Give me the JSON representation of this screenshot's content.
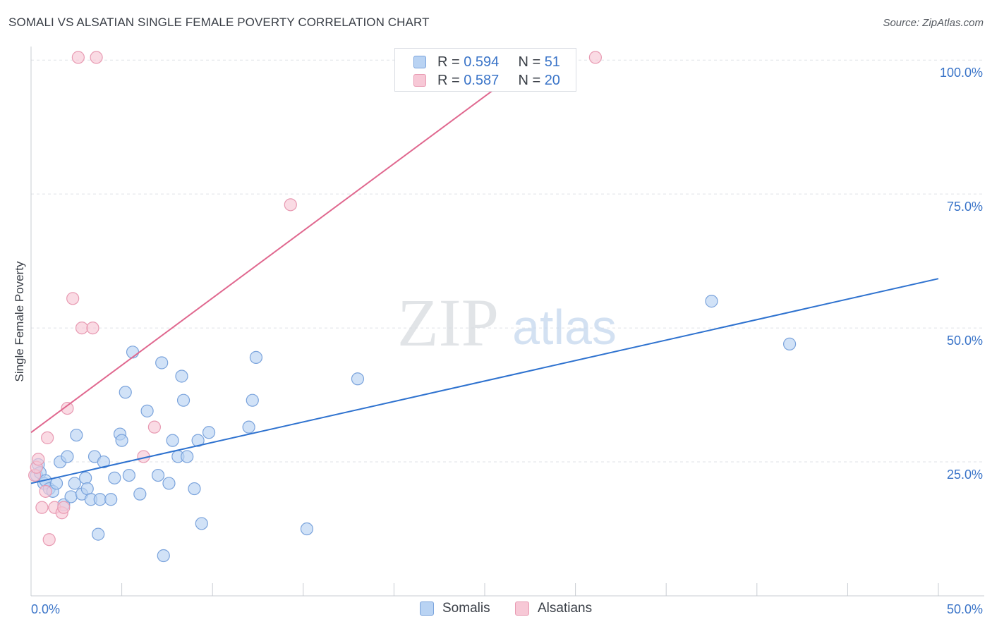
{
  "header": {
    "title": "SOMALI VS ALSATIAN SINGLE FEMALE POVERTY CORRELATION CHART",
    "source": "Source: ZipAtlas.com"
  },
  "watermark": {
    "zip": "ZIP",
    "atlas": "atlas"
  },
  "colors": {
    "somalis_fill": "#b9d3f3",
    "somalis_stroke": "#7aa3dc",
    "somalis_line": "#2e72cf",
    "alsatians_fill": "#f7c8d6",
    "alsatians_stroke": "#e89ab2",
    "alsatians_line": "#e0688f",
    "tick_text": "#3a74c8",
    "grid": "#dfe2e7"
  },
  "legend": {
    "somalis": {
      "r_label": "R = ",
      "r_value": "0.594",
      "n_label": "N = ",
      "n_value": "51"
    },
    "alsatians": {
      "r_label": "R = ",
      "r_value": "0.587",
      "n_label": "N = ",
      "n_value": "20"
    }
  },
  "bottom_legend": {
    "somalis": "Somalis",
    "alsatians": "Alsatians"
  },
  "chart_data": {
    "type": "scatter",
    "title": "SOMALI VS ALSATIAN SINGLE FEMALE POVERTY CORRELATION CHART",
    "xlabel": "",
    "ylabel": "Single Female Poverty",
    "xlim": [
      0,
      50
    ],
    "ylim": [
      0,
      102
    ],
    "x_tick_labels": [
      {
        "value": 0,
        "label": "0.0%"
      },
      {
        "value": 50,
        "label": "50.0%"
      }
    ],
    "y_tick_labels": [
      {
        "value": 25,
        "label": "25.0%"
      },
      {
        "value": 50,
        "label": "50.0%"
      },
      {
        "value": 75,
        "label": "75.0%"
      },
      {
        "value": 100,
        "label": "100.0%"
      }
    ],
    "series": [
      {
        "name": "Somalis",
        "r": 0.594,
        "n": 51,
        "trendline": {
          "x": [
            0,
            50
          ],
          "y": [
            21.0,
            59.2
          ]
        },
        "points": [
          [
            0.3,
            22.5
          ],
          [
            0.4,
            24.5
          ],
          [
            0.5,
            23.0
          ],
          [
            0.7,
            21.0
          ],
          [
            0.8,
            21.5
          ],
          [
            1.0,
            20.0
          ],
          [
            1.2,
            19.5
          ],
          [
            1.4,
            21.0
          ],
          [
            1.6,
            25.0
          ],
          [
            1.8,
            17.0
          ],
          [
            2.0,
            26.0
          ],
          [
            2.2,
            18.5
          ],
          [
            2.4,
            21.0
          ],
          [
            2.5,
            30.0
          ],
          [
            2.8,
            19.0
          ],
          [
            3.0,
            22.0
          ],
          [
            3.1,
            20.0
          ],
          [
            3.3,
            18.0
          ],
          [
            3.5,
            26.0
          ],
          [
            3.7,
            11.5
          ],
          [
            3.8,
            18.0
          ],
          [
            4.0,
            25.0
          ],
          [
            4.4,
            18.0
          ],
          [
            4.6,
            22.0
          ],
          [
            4.9,
            30.2
          ],
          [
            5.0,
            29.0
          ],
          [
            5.2,
            38.0
          ],
          [
            5.4,
            22.5
          ],
          [
            5.6,
            45.5
          ],
          [
            6.0,
            19.0
          ],
          [
            6.4,
            34.5
          ],
          [
            7.0,
            22.5
          ],
          [
            7.2,
            43.5
          ],
          [
            7.3,
            7.5
          ],
          [
            7.6,
            21.0
          ],
          [
            7.8,
            29.0
          ],
          [
            8.1,
            26.0
          ],
          [
            8.3,
            41.0
          ],
          [
            8.4,
            36.5
          ],
          [
            8.6,
            26.0
          ],
          [
            9.0,
            20.0
          ],
          [
            9.2,
            29.0
          ],
          [
            9.4,
            13.5
          ],
          [
            9.8,
            30.5
          ],
          [
            12.0,
            31.5
          ],
          [
            12.2,
            36.5
          ],
          [
            12.4,
            44.5
          ],
          [
            15.2,
            12.5
          ],
          [
            18.0,
            40.5
          ],
          [
            37.5,
            55.0
          ],
          [
            41.8,
            47.0
          ]
        ]
      },
      {
        "name": "Alsatians",
        "r": 0.587,
        "n": 20,
        "trendline": {
          "x": [
            0,
            28.5
          ],
          "y": [
            30.5,
            102
          ]
        },
        "points": [
          [
            0.2,
            22.5
          ],
          [
            0.3,
            24.0
          ],
          [
            0.4,
            25.5
          ],
          [
            0.6,
            16.5
          ],
          [
            0.8,
            19.5
          ],
          [
            0.9,
            29.5
          ],
          [
            1.0,
            10.5
          ],
          [
            1.3,
            16.5
          ],
          [
            1.7,
            15.5
          ],
          [
            1.8,
            16.5
          ],
          [
            2.0,
            35.0
          ],
          [
            2.3,
            55.5
          ],
          [
            2.6,
            100.5
          ],
          [
            2.8,
            50.0
          ],
          [
            3.4,
            50.0
          ],
          [
            3.6,
            100.5
          ],
          [
            6.2,
            26.0
          ],
          [
            6.8,
            31.5
          ],
          [
            14.3,
            73.0
          ],
          [
            31.1,
            100.5
          ]
        ]
      }
    ]
  }
}
